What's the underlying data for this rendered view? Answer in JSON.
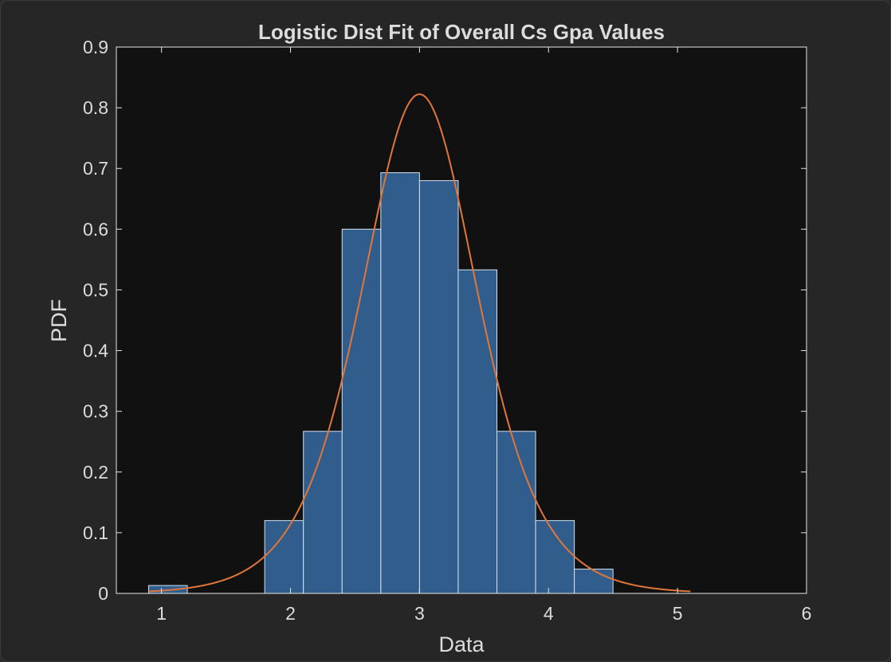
{
  "chart_data": {
    "type": "bar",
    "title": "Logistic Dist Fit of Overall Cs Gpa Values",
    "xlabel": "Data",
    "ylabel": "PDF",
    "xlim": [
      0.65,
      6
    ],
    "ylim": [
      0,
      0.9
    ],
    "xticks": [
      1,
      2,
      3,
      4,
      5,
      6
    ],
    "yticks": [
      0,
      0.1,
      0.2,
      0.3,
      0.4,
      0.5,
      0.6,
      0.7,
      0.8,
      0.9
    ],
    "xtick_labels": [
      "1",
      "2",
      "3",
      "4",
      "5",
      "6"
    ],
    "ytick_labels": [
      "0",
      "0.1",
      "0.2",
      "0.3",
      "0.4",
      "0.5",
      "0.6",
      "0.7",
      "0.8",
      "0.9"
    ],
    "grid": false,
    "series": [
      {
        "kind": "histogram",
        "bins": [
          {
            "x0": 0.9,
            "x1": 1.2,
            "value": 0.013
          },
          {
            "x0": 1.8,
            "x1": 2.1,
            "value": 0.12
          },
          {
            "x0": 2.1,
            "x1": 2.4,
            "value": 0.267
          },
          {
            "x0": 2.4,
            "x1": 2.7,
            "value": 0.6
          },
          {
            "x0": 2.7,
            "x1": 3.0,
            "value": 0.693
          },
          {
            "x0": 3.0,
            "x1": 3.3,
            "value": 0.68
          },
          {
            "x0": 3.3,
            "x1": 3.6,
            "value": 0.533
          },
          {
            "x0": 3.6,
            "x1": 3.9,
            "value": 0.267
          },
          {
            "x0": 3.9,
            "x1": 4.2,
            "value": 0.12
          },
          {
            "x0": 4.2,
            "x1": 4.5,
            "value": 0.04
          }
        ],
        "color": "#305d8c",
        "edge_color": "#d6e2f0"
      },
      {
        "kind": "fit_curve",
        "distribution": "logistic",
        "mu": 3.0,
        "s": 0.304,
        "x_range": [
          0.9,
          5.1
        ],
        "color": "#e0763a"
      }
    ],
    "colors": {
      "axes_background": "#111111",
      "axes_edge": "#e6e6e6",
      "text": "#dcdcdc"
    }
  }
}
